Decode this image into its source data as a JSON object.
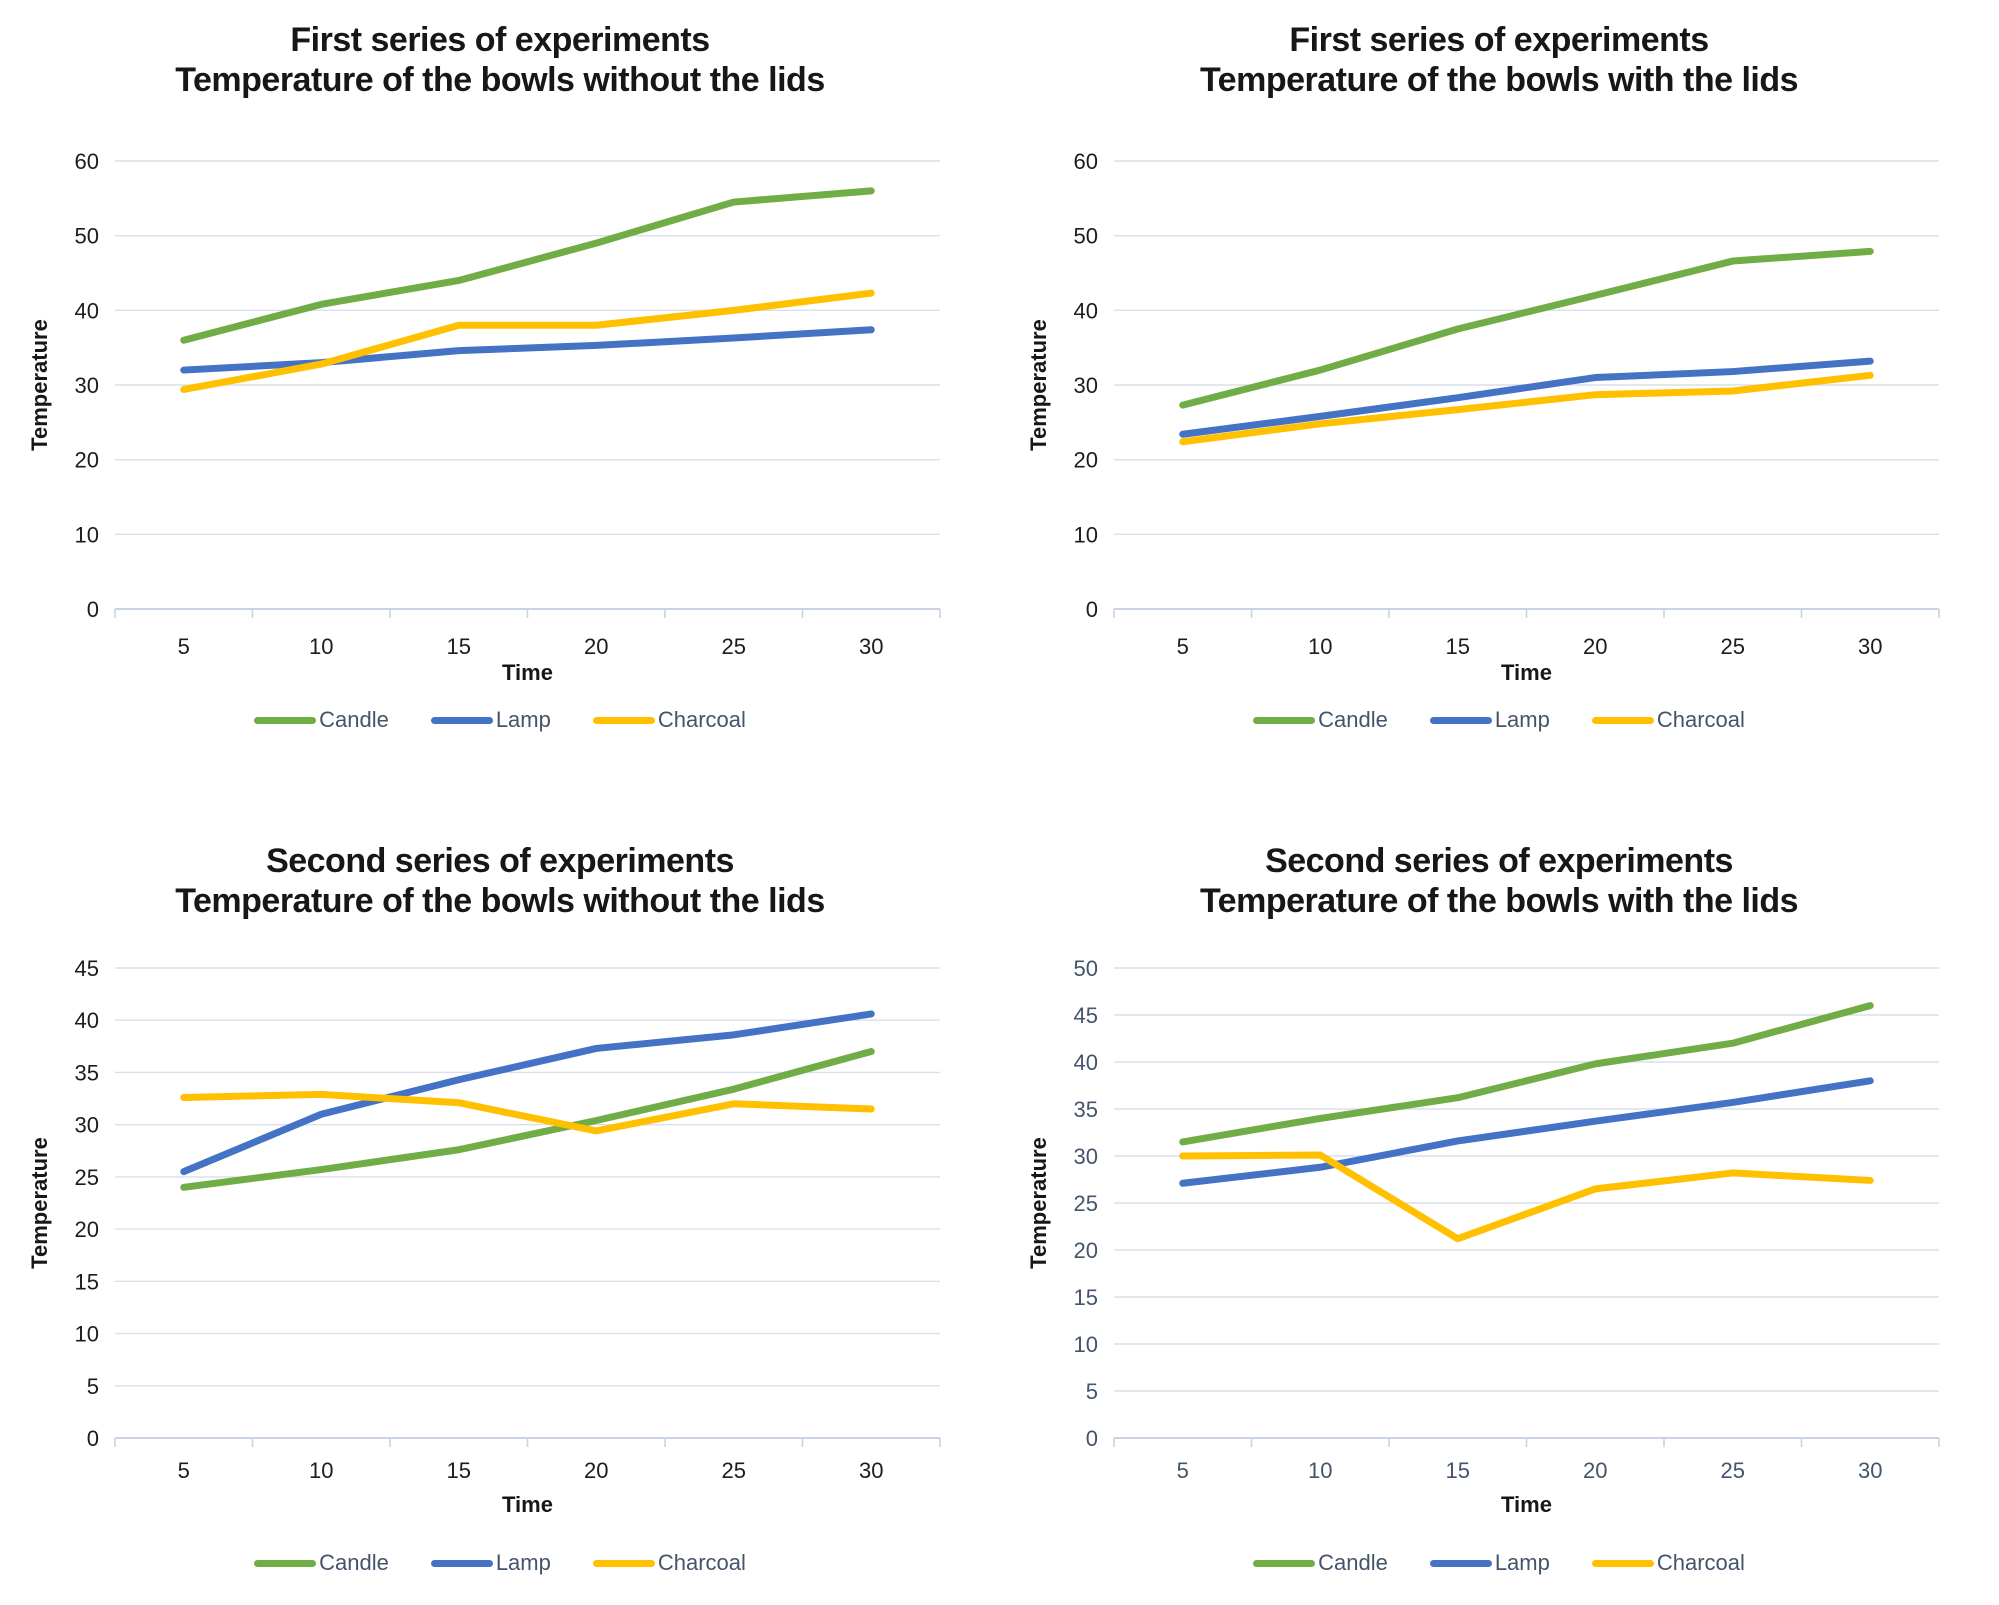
{
  "colors": {
    "Candle": "#70AD47",
    "Lamp": "#4472C4",
    "Charcoal": "#FFC000",
    "gridline": "#D9DFEC",
    "axis_line": "#C9D3E5",
    "dark_text": "#1C1C1C",
    "blue_text": "#44546A",
    "legend_text": "#44546A"
  },
  "chart_data": [
    {
      "type": "line",
      "title": [
        "First series of experiments",
        "Temperature of the bowls without the lids"
      ],
      "xlabel": "Time",
      "ylabel": "Temperature",
      "categories": [
        5,
        10,
        15,
        20,
        25,
        30
      ],
      "ylim": [
        0,
        60
      ],
      "ytick_step": 10,
      "grid": true,
      "tick_color": "dark",
      "legend_position": "bottom",
      "series": [
        {
          "name": "Candle",
          "values": [
            36,
            40.8,
            44,
            49,
            54.5,
            56
          ]
        },
        {
          "name": "Lamp",
          "values": [
            32,
            33,
            34.6,
            35.3,
            36.3,
            37.4
          ]
        },
        {
          "name": "Charcoal",
          "values": [
            29.4,
            32.8,
            38,
            38,
            40,
            42.3
          ]
        }
      ]
    },
    {
      "type": "line",
      "title": [
        "First series of experiments",
        "Temperature of the bowls with the lids"
      ],
      "xlabel": "Time",
      "ylabel": "Temperature",
      "categories": [
        5,
        10,
        15,
        20,
        25,
        30
      ],
      "ylim": [
        0,
        60
      ],
      "ytick_step": 10,
      "grid": true,
      "tick_color": "dark",
      "legend_position": "bottom",
      "series": [
        {
          "name": "Candle",
          "values": [
            27.3,
            32,
            37.5,
            42,
            46.6,
            47.9
          ]
        },
        {
          "name": "Lamp",
          "values": [
            23.4,
            25.8,
            28.3,
            31,
            31.8,
            33.2
          ]
        },
        {
          "name": "Charcoal",
          "values": [
            22.4,
            24.8,
            26.7,
            28.7,
            29.2,
            31.3
          ]
        }
      ]
    },
    {
      "type": "line",
      "title": [
        "Second series of experiments",
        "Temperature of the bowls without the lids"
      ],
      "xlabel": "Time",
      "ylabel": "Temperature",
      "categories": [
        5,
        10,
        15,
        20,
        25,
        30
      ],
      "ylim": [
        0,
        45
      ],
      "ytick_step": 5,
      "grid": true,
      "tick_color": "dark",
      "legend_position": "bottom",
      "series": [
        {
          "name": "Candle",
          "values": [
            24,
            25.7,
            27.6,
            30.4,
            33.4,
            37
          ]
        },
        {
          "name": "Lamp",
          "values": [
            25.5,
            31,
            34.3,
            37.3,
            38.6,
            40.6
          ]
        },
        {
          "name": "Charcoal",
          "values": [
            32.6,
            32.9,
            32.1,
            29.4,
            32,
            31.5
          ]
        }
      ]
    },
    {
      "type": "line",
      "title": [
        "Second series of experiments",
        "Temperature of the bowls with the lids"
      ],
      "xlabel": "Time",
      "ylabel": "Temperature",
      "categories": [
        5,
        10,
        15,
        20,
        25,
        30
      ],
      "ylim": [
        0,
        50
      ],
      "ytick_step": 5,
      "grid": true,
      "tick_color": "blue",
      "legend_position": "bottom",
      "series": [
        {
          "name": "Candle",
          "values": [
            31.5,
            34,
            36.2,
            39.8,
            42,
            46
          ]
        },
        {
          "name": "Lamp",
          "values": [
            27.1,
            28.8,
            31.6,
            33.7,
            35.7,
            38
          ]
        },
        {
          "name": "Charcoal",
          "values": [
            30,
            30.1,
            21.2,
            26.5,
            28.2,
            27.4
          ]
        }
      ]
    }
  ]
}
